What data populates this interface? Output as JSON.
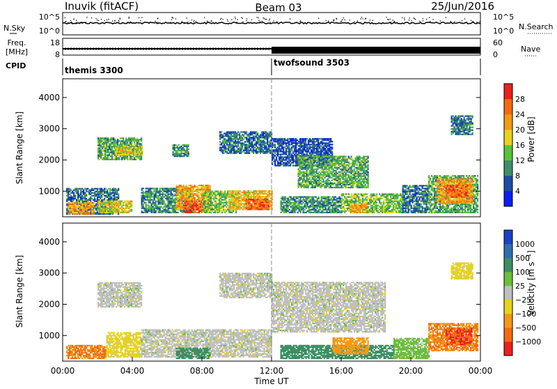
{
  "header": {
    "station": "Inuvik (fitACF)",
    "beam": "Beam 03",
    "date": "25/Jun/2016"
  },
  "panel_nsky": {
    "left_label": "N.Sky",
    "right_label": "N.Search",
    "left_ticks": [
      "10^5",
      "10^0"
    ],
    "right_ticks": [
      "10^5",
      "10^0"
    ]
  },
  "panel_freq": {
    "left_label_top": "Freq.",
    "left_label_bottom": "[MHz]",
    "right_label": "Nave",
    "left_ticks": [
      "18",
      "8"
    ],
    "right_ticks": [
      "60",
      "0"
    ]
  },
  "panel_cpid": {
    "label": "CPID",
    "modes": [
      {
        "name": "themis 3300",
        "start_hour": 0
      },
      {
        "name": "twofsound 3503",
        "start_hour": 12
      }
    ]
  },
  "colors": {
    "power_scale": [
      "#0a1ef0",
      "#1c4da6",
      "#3f8f6a",
      "#58c33a",
      "#e6d31e",
      "#f29a16",
      "#f36a12",
      "#e8221c"
    ],
    "velocity_scale": [
      "#e8221c",
      "#f36a12",
      "#f29a16",
      "#e6d31e",
      "#bfbfbf",
      "#6bbf3a",
      "#3d8f63",
      "#2f6fae",
      "#1a43c8"
    ]
  },
  "chart_data": [
    {
      "type": "heatmap",
      "name": "power",
      "ylabel": "Slant Range [km]",
      "ylim": [
        180,
        4600
      ],
      "yticks": [
        "1000",
        "2000",
        "3000",
        "4000"
      ],
      "ytick_values": [
        1000,
        2000,
        3000,
        4000
      ],
      "colorbar_label": "Power [dB]",
      "colorbar_ticks": [
        "28",
        "24",
        "20",
        "16",
        "12",
        "8",
        "4"
      ],
      "colorbar_range": [
        0,
        32
      ],
      "patches": [
        {
          "t0": 0.2,
          "t1": 3.2,
          "r0": 250,
          "r1": 1100,
          "v": 8
        },
        {
          "t0": 0.3,
          "t1": 1.8,
          "r0": 250,
          "r1": 650,
          "v": 22
        },
        {
          "t0": 2.0,
          "t1": 4.0,
          "r0": 300,
          "r1": 700,
          "v": 18
        },
        {
          "t0": 2.0,
          "t1": 4.5,
          "r0": 2000,
          "r1": 2700,
          "v": 12
        },
        {
          "t0": 3.0,
          "t1": 4.6,
          "r0": 2150,
          "r1": 2450,
          "v": 18
        },
        {
          "t0": 4.5,
          "t1": 7.5,
          "r0": 300,
          "r1": 1100,
          "v": 10
        },
        {
          "t0": 6.5,
          "t1": 8.5,
          "r0": 400,
          "r1": 1200,
          "v": 22
        },
        {
          "t0": 7.0,
          "t1": 8.2,
          "r0": 300,
          "r1": 700,
          "v": 28
        },
        {
          "t0": 8.0,
          "t1": 10.0,
          "r0": 300,
          "r1": 1000,
          "v": 14
        },
        {
          "t0": 9.5,
          "t1": 12.0,
          "r0": 400,
          "r1": 1000,
          "v": 20
        },
        {
          "t0": 10.5,
          "t1": 11.8,
          "r0": 400,
          "r1": 750,
          "v": 26
        },
        {
          "t0": 9.0,
          "t1": 12.0,
          "r0": 2200,
          "r1": 2900,
          "v": 8
        },
        {
          "t0": 6.3,
          "t1": 7.2,
          "r0": 2100,
          "r1": 2500,
          "v": 10
        },
        {
          "t0": 12.0,
          "t1": 15.5,
          "r0": 1800,
          "r1": 2700,
          "v": 6
        },
        {
          "t0": 13.5,
          "t1": 17.5,
          "r0": 1100,
          "r1": 2100,
          "v": 12
        },
        {
          "t0": 12.5,
          "t1": 16.0,
          "r0": 300,
          "r1": 800,
          "v": 10
        },
        {
          "t0": 16.0,
          "t1": 19.5,
          "r0": 300,
          "r1": 900,
          "v": 14
        },
        {
          "t0": 16.5,
          "t1": 17.5,
          "r0": 300,
          "r1": 600,
          "v": 22
        },
        {
          "t0": 19.5,
          "t1": 21.0,
          "r0": 300,
          "r1": 1200,
          "v": 8
        },
        {
          "t0": 21.0,
          "t1": 23.8,
          "r0": 300,
          "r1": 1500,
          "v": 12
        },
        {
          "t0": 21.5,
          "t1": 23.5,
          "r0": 600,
          "r1": 1400,
          "v": 22
        },
        {
          "t0": 22.0,
          "t1": 23.2,
          "r0": 800,
          "r1": 1200,
          "v": 26
        },
        {
          "t0": 22.3,
          "t1": 23.5,
          "r0": 2800,
          "r1": 3400,
          "v": 8
        }
      ]
    },
    {
      "type": "heatmap",
      "name": "velocity",
      "ylabel": "Slant Range [km]",
      "ylim": [
        180,
        4600
      ],
      "yticks": [
        "1000",
        "2000",
        "3000",
        "4000"
      ],
      "ytick_values": [
        1000,
        2000,
        3000,
        4000
      ],
      "colorbar_label": "Velocity [m s^-1]",
      "colorbar_ticks": [
        "1000",
        "500",
        "100",
        "25",
        "−25",
        "−100",
        "−500",
        "−1000"
      ],
      "xticks": [
        "00:00",
        "04:00",
        "08:00",
        "12:00",
        "16:00",
        "20:00",
        "00:00"
      ],
      "xtick_hours": [
        0,
        4,
        8,
        12,
        16,
        20,
        24
      ],
      "xlabel": "Time UT",
      "xlim": [
        0,
        24
      ],
      "patches": [
        {
          "t0": 0.2,
          "t1": 2.5,
          "r0": 250,
          "r1": 700,
          "v": -500
        },
        {
          "t0": 2.5,
          "t1": 4.5,
          "r0": 300,
          "r1": 1100,
          "v": -50
        },
        {
          "t0": 2.0,
          "t1": 4.5,
          "r0": 1900,
          "r1": 2700,
          "v": 0
        },
        {
          "t0": 4.5,
          "t1": 12.0,
          "r0": 300,
          "r1": 1200,
          "v": 0
        },
        {
          "t0": 6.5,
          "t1": 8.5,
          "r0": 250,
          "r1": 600,
          "v": 300
        },
        {
          "t0": 9.0,
          "t1": 12.0,
          "r0": 2200,
          "r1": 3000,
          "v": 0
        },
        {
          "t0": 12.0,
          "t1": 18.5,
          "r0": 1100,
          "r1": 2700,
          "v": 0
        },
        {
          "t0": 12.5,
          "t1": 19.0,
          "r0": 250,
          "r1": 700,
          "v": 200
        },
        {
          "t0": 15.5,
          "t1": 17.5,
          "r0": 400,
          "r1": 900,
          "v": -200
        },
        {
          "t0": 19.0,
          "t1": 21.0,
          "r0": 250,
          "r1": 900,
          "v": 50
        },
        {
          "t0": 21.0,
          "t1": 23.8,
          "r0": 500,
          "r1": 1400,
          "v": -500
        },
        {
          "t0": 22.0,
          "t1": 23.5,
          "r0": 700,
          "r1": 1200,
          "v": -1000
        },
        {
          "t0": 22.3,
          "t1": 23.5,
          "r0": 2800,
          "r1": 3300,
          "v": -50
        }
      ]
    }
  ]
}
